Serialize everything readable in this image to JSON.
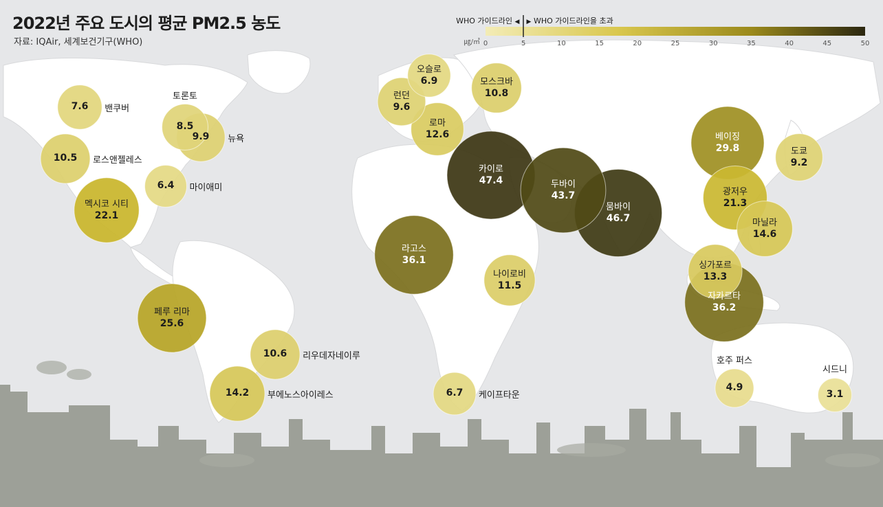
{
  "title": "2022년 주요 도시의 평균 PM2.5 농도",
  "source": "자료: IQAir, 세계보건기구(WHO)",
  "legend": {
    "who_guideline": "WHO 가이드라인",
    "who_exceeded": "WHO 가이드라인을 초과",
    "unit": "㎍/㎥",
    "ticks": [
      "0",
      "5",
      "10",
      "15",
      "20",
      "25",
      "30",
      "35",
      "40",
      "45",
      "50"
    ],
    "range": [
      0,
      50
    ],
    "guideline_value": 5,
    "color_low": "#efe7a8",
    "color_mid": "#c8b52a",
    "color_high": "#2e2a12"
  },
  "chart_data": {
    "type": "bubble-map",
    "title": "2022년 주요 도시의 평균 PM2.5 농도",
    "unit": "㎍/㎥",
    "cities": [
      {
        "name": "밴쿠버",
        "value": 7.6
      },
      {
        "name": "토론토",
        "value": 8.5
      },
      {
        "name": "뉴욕",
        "value": 9.9
      },
      {
        "name": "로스앤젤레스",
        "value": 10.5
      },
      {
        "name": "마이애미",
        "value": 6.4
      },
      {
        "name": "멕시코 시티",
        "value": 22.1
      },
      {
        "name": "페루 리마",
        "value": 25.6
      },
      {
        "name": "리우데자네이루",
        "value": 10.6
      },
      {
        "name": "부에노스아이레스",
        "value": 14.2
      },
      {
        "name": "오슬로",
        "value": 6.9
      },
      {
        "name": "런던",
        "value": 9.6
      },
      {
        "name": "모스크바",
        "value": 10.8
      },
      {
        "name": "로마",
        "value": 12.6
      },
      {
        "name": "카이로",
        "value": 47.4
      },
      {
        "name": "두바이",
        "value": 43.7
      },
      {
        "name": "뭄바이",
        "value": 46.7
      },
      {
        "name": "라고스",
        "value": 36.1
      },
      {
        "name": "나이로비",
        "value": 11.5
      },
      {
        "name": "케이프타운",
        "value": 6.7
      },
      {
        "name": "베이징",
        "value": 29.8
      },
      {
        "name": "도쿄",
        "value": 9.2
      },
      {
        "name": "광저우",
        "value": 21.3
      },
      {
        "name": "마닐라",
        "value": 14.6
      },
      {
        "name": "싱가포르",
        "value": 13.3
      },
      {
        "name": "자카르타",
        "value": 36.2
      },
      {
        "name": "호주 퍼스",
        "value": 4.9
      },
      {
        "name": "시드니",
        "value": 3.1
      }
    ]
  }
}
